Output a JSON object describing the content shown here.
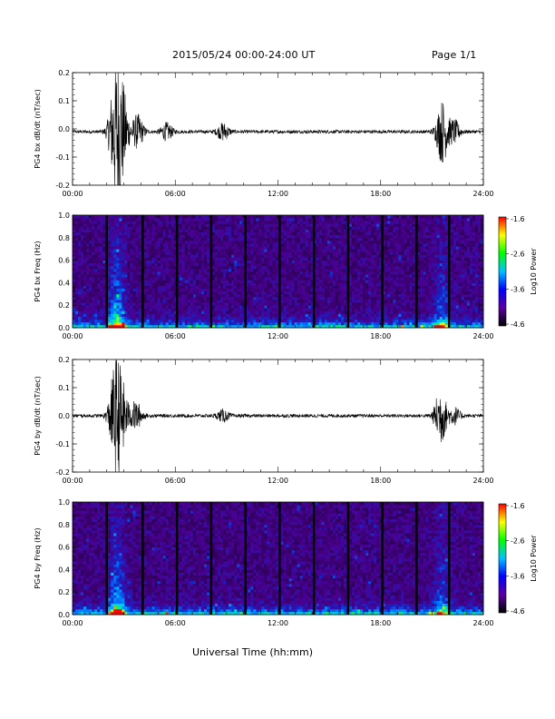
{
  "header": {
    "title": "2015/05/24  00:00-24:00 UT",
    "page": "Page 1/1"
  },
  "colorbar": {
    "label": "Log10 Power",
    "ticks": [
      "-1.6",
      "-2.6",
      "-3.6",
      "-4.6"
    ],
    "colors": [
      "#ff0000",
      "#ffff00",
      "#00ff00",
      "#00c0ff",
      "#0000ff",
      "#5a00a0",
      "#000000"
    ]
  },
  "time_ticks": [
    "00:00",
    "06:00",
    "12:00",
    "18:00",
    "24:00"
  ],
  "xlabel": "Universal Time (hh:mm)",
  "chart_data": [
    {
      "type": "line",
      "ylabel": "PG4 bx dB/dt (nT/sec)",
      "x_range": [
        0,
        24
      ],
      "ylim": [
        -0.2,
        0.2
      ],
      "yticks": [
        "0.2",
        "0.1",
        "0.0",
        "-0.1",
        "-0.2"
      ],
      "baseline": -0.01,
      "bursts": [
        {
          "t": 2.5,
          "amp": 0.21
        },
        {
          "t": 2.9,
          "amp": 0.15
        },
        {
          "t": 3.8,
          "amp": 0.06
        },
        {
          "t": 5.5,
          "amp": 0.03
        },
        {
          "t": 8.8,
          "amp": 0.03
        },
        {
          "t": 21.6,
          "amp": 0.11
        },
        {
          "t": 22.3,
          "amp": 0.04
        }
      ]
    },
    {
      "type": "heatmap",
      "ylabel": "PG4 bx Freq (Hz)",
      "x_range": [
        0,
        24
      ],
      "ylim": [
        0,
        1.0
      ],
      "yticks": [
        "1.0",
        "0.8",
        "0.6",
        "0.4",
        "0.2",
        "0.0"
      ],
      "gaps_hours": [
        2.0,
        4.1,
        6.1,
        8.1,
        10.1,
        12.1,
        14.1,
        16.1,
        18.1,
        20.1,
        22.0
      ]
    },
    {
      "type": "line",
      "ylabel": "PG4 by dB/dt (nT/sec)",
      "x_range": [
        0,
        24
      ],
      "ylim": [
        -0.2,
        0.2
      ],
      "yticks": [
        "0.2",
        "0.1",
        "0.0",
        "-0.1",
        "-0.2"
      ],
      "baseline": 0.0,
      "bursts": [
        {
          "t": 2.5,
          "amp": 0.18
        },
        {
          "t": 2.9,
          "amp": 0.1
        },
        {
          "t": 3.7,
          "amp": 0.05
        },
        {
          "t": 8.8,
          "amp": 0.02
        },
        {
          "t": 21.5,
          "amp": 0.1
        },
        {
          "t": 22.3,
          "amp": 0.03
        }
      ]
    },
    {
      "type": "heatmap",
      "ylabel": "PG4 by Freq (Hz)",
      "x_range": [
        0,
        24
      ],
      "ylim": [
        0,
        1.0
      ],
      "yticks": [
        "1.0",
        "0.8",
        "0.6",
        "0.4",
        "0.2",
        "0.0"
      ],
      "gaps_hours": [
        2.0,
        4.1,
        6.1,
        8.1,
        10.1,
        12.1,
        14.1,
        16.1,
        18.1,
        20.1,
        22.0
      ]
    }
  ]
}
